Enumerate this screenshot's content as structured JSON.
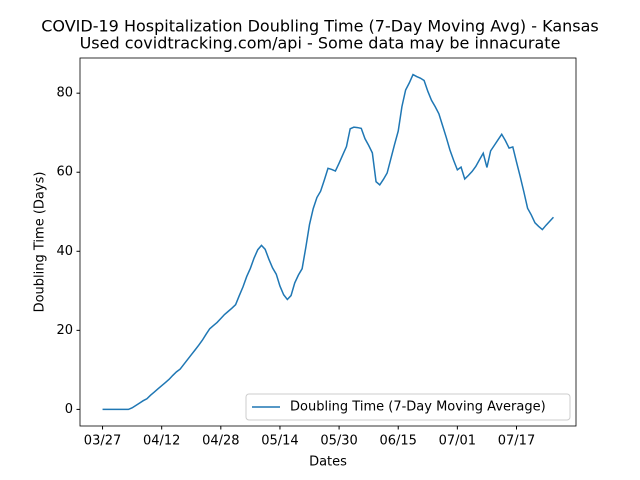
{
  "chart_data": {
    "type": "line",
    "title": "COVID-19 Hospitalization Doubling Time (7-Day Moving Avg) - Kansas",
    "subtitle": "Used covidtracking.com/api - Some data may be innacurate",
    "x_label": "Dates",
    "y_label": "Doubling Time (Days)",
    "x": [
      "03/27",
      "03/28",
      "03/29",
      "03/30",
      "03/31",
      "04/01",
      "04/02",
      "04/03",
      "04/04",
      "04/05",
      "04/06",
      "04/07",
      "04/08",
      "04/09",
      "04/10",
      "04/11",
      "04/12",
      "04/13",
      "04/14",
      "04/15",
      "04/16",
      "04/17",
      "04/18",
      "04/19",
      "04/20",
      "04/21",
      "04/22",
      "04/23",
      "04/24",
      "04/25",
      "04/26",
      "04/27",
      "04/28",
      "04/29",
      "04/30",
      "05/01",
      "05/02",
      "05/03",
      "05/04",
      "05/05",
      "05/06",
      "05/07",
      "05/08",
      "05/09",
      "05/10",
      "05/11",
      "05/12",
      "05/13",
      "05/14",
      "05/15",
      "05/16",
      "05/17",
      "05/18",
      "05/19",
      "05/20",
      "05/21",
      "05/22",
      "05/23",
      "05/24",
      "05/25",
      "05/26",
      "05/27",
      "05/28",
      "05/29",
      "05/30",
      "05/31",
      "06/01",
      "06/02",
      "06/03",
      "06/04",
      "06/05",
      "06/06",
      "06/07",
      "06/08",
      "06/09",
      "06/10",
      "06/11",
      "06/12",
      "06/13",
      "06/14",
      "06/15",
      "06/16",
      "06/17",
      "06/18",
      "06/19",
      "06/20",
      "06/21",
      "06/22",
      "06/23",
      "06/24",
      "06/25",
      "06/26",
      "06/27",
      "06/28",
      "06/29",
      "06/30",
      "07/01",
      "07/02",
      "07/03",
      "07/04",
      "07/05",
      "07/06",
      "07/07",
      "07/08",
      "07/09",
      "07/10",
      "07/11",
      "07/12",
      "07/13",
      "07/14",
      "07/15",
      "07/16",
      "07/17",
      "07/18",
      "07/19",
      "07/20",
      "07/21",
      "07/22",
      "07/23",
      "07/24",
      "07/25",
      "07/26",
      "07/27"
    ],
    "series": [
      {
        "name": "Doubling Time (7-Day Moving Average)",
        "color": "#1f77b4",
        "values": [
          0,
          0,
          0,
          0,
          0,
          0,
          0,
          0,
          0.4,
          1.0,
          1.6,
          2.2,
          2.7,
          3.6,
          4.4,
          5.2,
          6.0,
          6.8,
          7.6,
          8.6,
          9.5,
          10.2,
          11.4,
          12.6,
          13.8,
          15.0,
          16.2,
          17.5,
          19.0,
          20.4,
          21.2,
          22.0,
          23.0,
          24.0,
          24.8,
          25.6,
          26.5,
          28.8,
          31.0,
          33.6,
          35.7,
          38.3,
          40.4,
          41.5,
          40.5,
          38.0,
          35.8,
          34.2,
          31.2,
          29.0,
          27.8,
          28.8,
          32.0,
          34.0,
          35.6,
          41.0,
          46.8,
          50.8,
          53.6,
          55.2,
          58.0,
          61.0,
          60.7,
          60.3,
          62.3,
          64.4,
          66.5,
          71.0,
          71.4,
          71.3,
          71.1,
          68.5,
          66.8,
          64.9,
          57.6,
          56.8,
          58.2,
          59.8,
          63.4,
          67.0,
          70.4,
          76.6,
          80.8,
          82.6,
          84.7,
          84.2,
          83.8,
          83.2,
          80.5,
          78.2,
          76.6,
          74.8,
          71.8,
          68.8,
          65.6,
          63.0,
          60.6,
          61.3,
          58.3,
          59.2,
          60.2,
          61.5,
          63.2,
          64.8,
          61.2,
          65.4,
          66.8,
          68.2,
          69.6,
          68.0,
          66.1,
          66.4,
          62.6,
          58.9,
          55.0,
          50.9,
          49.2,
          47.2,
          46.3,
          45.5,
          46.6,
          47.6,
          48.6
        ]
      }
    ],
    "xticks": [
      "03/27",
      "04/12",
      "04/28",
      "05/14",
      "05/30",
      "06/15",
      "07/01",
      "07/17"
    ],
    "ylim": [
      -4.2,
      88.9
    ],
    "yticks": [
      0,
      20,
      40,
      60,
      80
    ],
    "legend": "lower right"
  }
}
